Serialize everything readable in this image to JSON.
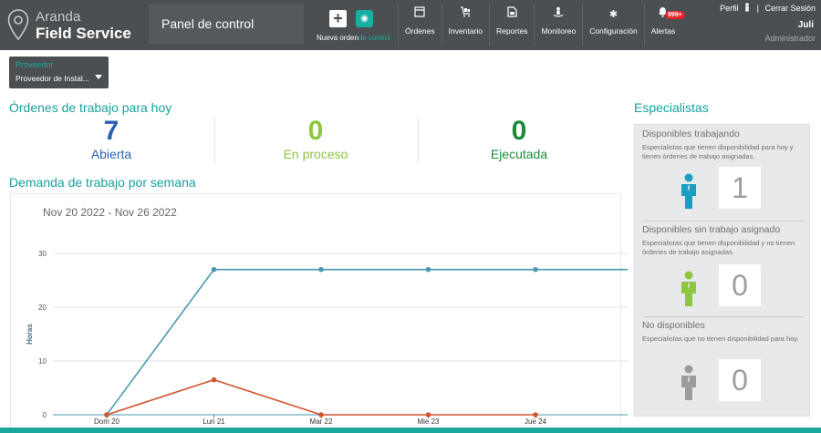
{
  "header": {
    "brand": "Aranda",
    "product": "Field Service",
    "page_title": "Panel de control",
    "new_order": {
      "label_a": "Nueva orden",
      "label_b": "de control"
    },
    "nav": [
      {
        "label": "Órdenes",
        "icon": "orders-icon"
      },
      {
        "label": "Inventario",
        "icon": "inventory-icon"
      },
      {
        "label": "Reportes",
        "icon": "reports-icon"
      },
      {
        "label": "Monitoreo",
        "icon": "monitoring-icon"
      },
      {
        "label": "Configuración",
        "icon": "gear-icon"
      },
      {
        "label": "Alertas",
        "icon": "bell-icon"
      }
    ],
    "alerts_badge": "999+",
    "profile_link": "Perfil",
    "logout_link": "Cerrar Sesión",
    "separator": "|",
    "user_name": "Juli",
    "user_role": "Administrador"
  },
  "provider": {
    "label": "Proveedor",
    "value": "Proveedor de Instal..."
  },
  "orders_today": {
    "title": "Órdenes de trabajo para hoy",
    "open": {
      "value": "7",
      "label": "Abierta",
      "color": "#2b5fb2"
    },
    "in_progress": {
      "value": "0",
      "label": "En proceso",
      "color": "#8dc63f"
    },
    "executed": {
      "value": "0",
      "label": "Ejecutada",
      "color": "#1e8a3c"
    }
  },
  "weekly_demand": {
    "title": "Demanda de trabajo por semana",
    "range": "Nov 20 2022 - Nov 26 2022"
  },
  "chart_data": {
    "type": "line",
    "categories": [
      "Dom 20",
      "Lun 21",
      "Mar 22",
      "Mie 23",
      "Jue 24"
    ],
    "ylabel": "Horas",
    "ylim": [
      0,
      30
    ],
    "yticks": [
      0,
      10,
      20,
      30
    ],
    "grid": true,
    "series": [
      {
        "color": "#4a9ab0",
        "values": [
          0,
          27,
          27,
          27,
          27
        ]
      },
      {
        "color": "#d2552e",
        "values": [
          0,
          6.5,
          0,
          0,
          0
        ]
      }
    ]
  },
  "specialists": {
    "title": "Especialistas",
    "working": {
      "title": "Disponibles trabajando",
      "desc": "Especialistas que tienen disponibilidad para hoy y tienen órdenes de trabajo asignadas.",
      "count": "1",
      "color": "#1a9fc2"
    },
    "idle": {
      "title": "Disponibles sin trabajo asignado",
      "desc": "Especialistas que tienen disponibilidad y no tienen órdenes de trabajo asignadas.",
      "count": "0",
      "color": "#8dc63f"
    },
    "unavailable": {
      "title": "No disponibles",
      "desc": "Especialistas que no tienen disponibilidad para hoy.",
      "count": "0",
      "color": "#9a9c9e"
    }
  }
}
